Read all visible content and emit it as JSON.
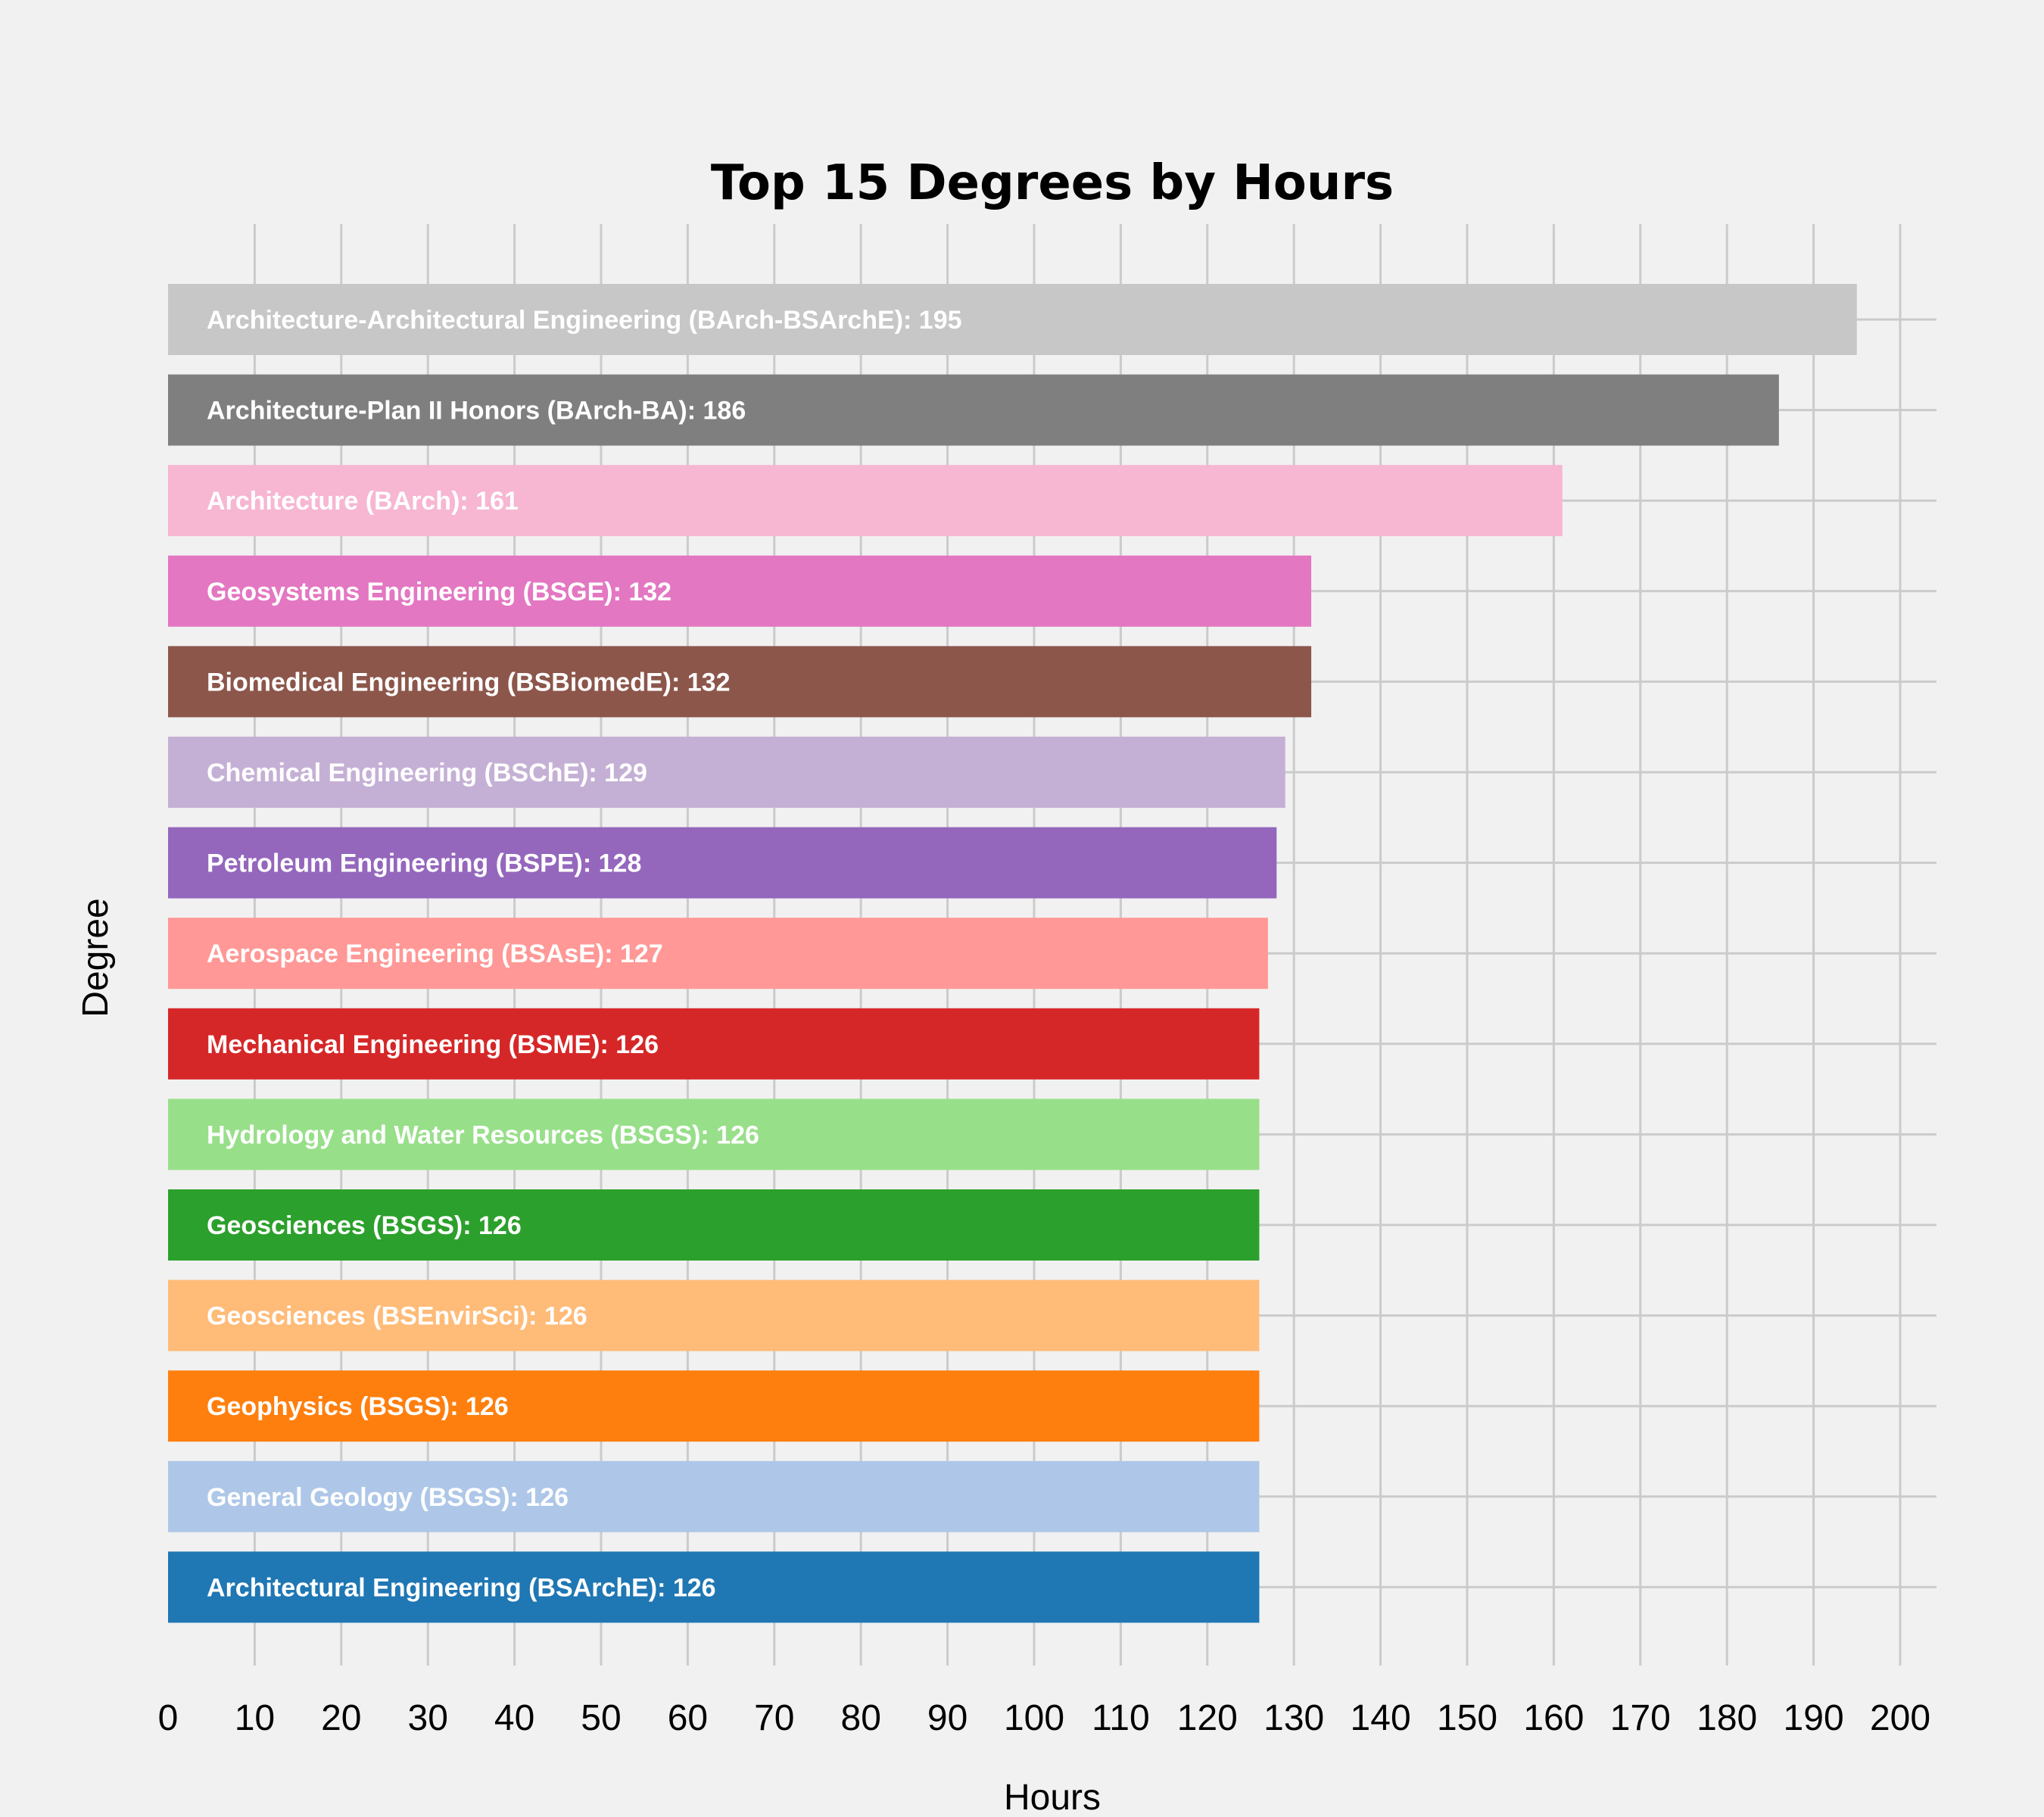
{
  "chart_data": {
    "type": "bar",
    "orientation": "horizontal",
    "title": "Top 15 Degrees by Hours",
    "xlabel": "Hours",
    "ylabel": "Degree",
    "xlim": [
      0,
      200
    ],
    "x_ticks": [
      0,
      10,
      20,
      30,
      40,
      50,
      60,
      70,
      80,
      90,
      100,
      110,
      120,
      130,
      140,
      150,
      160,
      170,
      180,
      190,
      200
    ],
    "grid": true,
    "legend": "none",
    "bars": [
      {
        "category": "Architecture-Architectural Engineering (BArch-BSArchE)",
        "value": 195,
        "color": "#c7c7c7",
        "label": "Architecture-Architectural Engineering (BArch-BSArchE): 195"
      },
      {
        "category": "Architecture-Plan II Honors (BArch-BA)",
        "value": 186,
        "color": "#7f7f7f",
        "label": "Architecture-Plan II Honors (BArch-BA): 186"
      },
      {
        "category": "Architecture (BArch)",
        "value": 161,
        "color": "#f7b6d2",
        "label": "Architecture (BArch): 161"
      },
      {
        "category": "Geosystems Engineering (BSGE)",
        "value": 132,
        "color": "#e377c2",
        "label": "Geosystems Engineering (BSGE): 132"
      },
      {
        "category": "Biomedical Engineering (BSBiomedE)",
        "value": 132,
        "color": "#8c564b",
        "label": "Biomedical Engineering (BSBiomedE): 132"
      },
      {
        "category": "Chemical Engineering (BSChE)",
        "value": 129,
        "color": "#c5b0d5",
        "label": "Chemical Engineering (BSChE): 129"
      },
      {
        "category": "Petroleum Engineering (BSPE)",
        "value": 128,
        "color": "#9467bd",
        "label": "Petroleum Engineering (BSPE): 128"
      },
      {
        "category": "Aerospace Engineering (BSAsE)",
        "value": 127,
        "color": "#ff9896",
        "label": "Aerospace Engineering (BSAsE): 127"
      },
      {
        "category": "Mechanical Engineering (BSME)",
        "value": 126,
        "color": "#d62728",
        "label": "Mechanical Engineering (BSME): 126"
      },
      {
        "category": "Hydrology and Water Resources (BSGS)",
        "value": 126,
        "color": "#98df8a",
        "label": "Hydrology and Water Resources (BSGS): 126"
      },
      {
        "category": "Geosciences (BSGS)",
        "value": 126,
        "color": "#2ca02c",
        "label": "Geosciences (BSGS): 126"
      },
      {
        "category": "Geosciences (BSEnvirSci)",
        "value": 126,
        "color": "#ffbb78",
        "label": "Geosciences (BSEnvirSci): 126"
      },
      {
        "category": "Geophysics (BSGS)",
        "value": 126,
        "color": "#ff7f0e",
        "label": "Geophysics (BSGS): 126"
      },
      {
        "category": "General Geology (BSGS)",
        "value": 126,
        "color": "#aec7e8",
        "label": "General Geology (BSGS): 126"
      },
      {
        "category": "Architectural Engineering (BSArchE)",
        "value": 126,
        "color": "#1f77b4",
        "label": "Architectural Engineering (BSArchE): 126"
      }
    ]
  }
}
